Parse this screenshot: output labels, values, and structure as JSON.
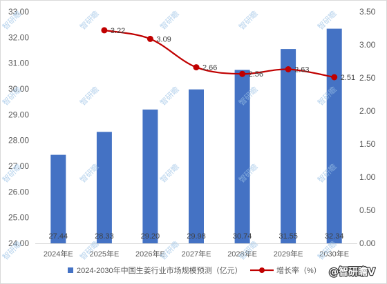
{
  "chart_data": {
    "type": "bar",
    "categories": [
      "2024年E",
      "2025年E",
      "2026年E",
      "2027年E",
      "2028年E",
      "2029年E",
      "2030年E"
    ],
    "series": [
      {
        "name": "2024-2030年中国生姜行业市场规模预测（亿元）",
        "type": "bar",
        "axis": "left",
        "values": [
          27.44,
          28.33,
          29.2,
          29.98,
          30.74,
          31.55,
          32.34
        ],
        "labels": [
          "27.44",
          "28.33",
          "29.20",
          "29.98",
          "30.74",
          "31.55",
          "32.34"
        ],
        "color": "#4472C4"
      },
      {
        "name": "增长率（%）",
        "type": "line",
        "axis": "right",
        "smooth": true,
        "values": [
          null,
          3.22,
          3.09,
          2.66,
          2.56,
          2.63,
          2.51
        ],
        "labels": [
          null,
          "3.22",
          "3.09",
          "2.66",
          "2.56",
          "2.63",
          "2.51"
        ],
        "color": "#C00000"
      }
    ],
    "y_left": {
      "range": [
        24,
        33
      ],
      "ticks": [
        "24.00",
        "25.00",
        "26.00",
        "27.00",
        "28.00",
        "29.00",
        "30.00",
        "31.00",
        "32.00",
        "33.00"
      ]
    },
    "y_right": {
      "range": [
        0,
        3.5
      ],
      "ticks": [
        "0.00",
        "0.50",
        "1.00",
        "1.50",
        "2.00",
        "2.50",
        "3.00",
        "3.50"
      ]
    },
    "grid": false,
    "legend": "bottom"
  },
  "watermark": {
    "text": "智研瞻",
    "badge": "@智研瞻V"
  }
}
